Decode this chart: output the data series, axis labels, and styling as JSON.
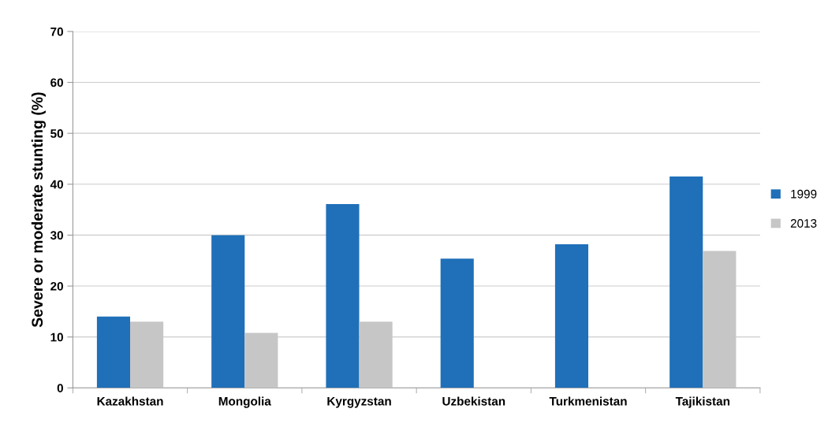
{
  "chart_data": {
    "type": "bar",
    "ylabel": "Severe or moderate stunting (%)",
    "categories": [
      "Kazakhstan",
      "Mongolia",
      "Kyrgyzstan",
      "Uzbekistan",
      "Turkmenistan",
      "Tajikistan"
    ],
    "series": [
      {
        "name": "1999",
        "color": "#1f70b8",
        "values": [
          14,
          30,
          36.1,
          25.4,
          28.2,
          41.5
        ]
      },
      {
        "name": "2013",
        "color": "#c6c6c6",
        "values": [
          13,
          10.8,
          13,
          null,
          null,
          26.9
        ]
      }
    ],
    "ylim": [
      0,
      70
    ],
    "yticks": [
      0,
      10,
      20,
      30,
      40,
      50,
      60,
      70
    ],
    "grid": "y",
    "legend": "right"
  }
}
